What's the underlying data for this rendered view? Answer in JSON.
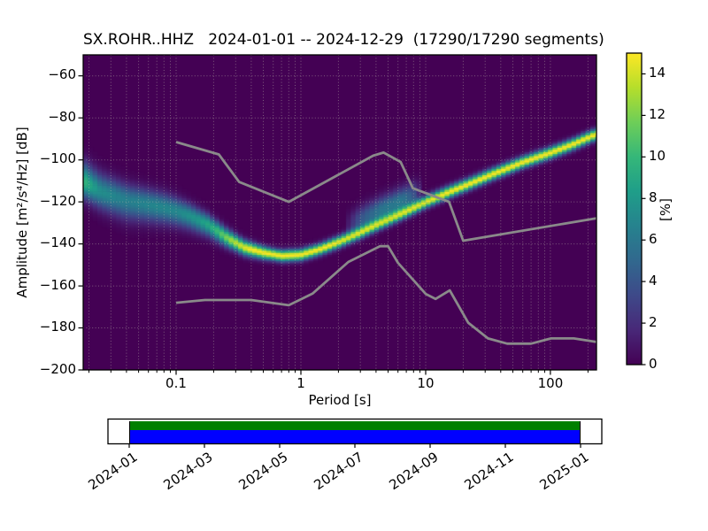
{
  "figure": {
    "title": "SX.ROHR..HHZ   2024-01-01 -- 2024-12-29  (17290/17290 segments)"
  },
  "chart_data": {
    "type": "heatmap",
    "title": "SX.ROHR..HHZ   2024-01-01 -- 2024-12-29  (17290/17290 segments)",
    "xlabel": "Period [s]",
    "ylabel": "Amplitude [m²/s⁴/Hz] [dB]",
    "xscale": "log",
    "xlim": [
      0.018,
      234
    ],
    "ylim": [
      -200,
      -50
    ],
    "grid": true,
    "colormap": "viridis",
    "xticks": {
      "values": [
        0.1,
        1,
        10,
        100
      ],
      "labels": [
        "0.1",
        "1",
        "10",
        "100"
      ]
    },
    "yticks": {
      "values": [
        -200,
        -180,
        -160,
        -140,
        -120,
        -100,
        -80,
        -60
      ],
      "labels": [
        "−200",
        "−180",
        "−160",
        "−140",
        "−120",
        "−100",
        "−80",
        "−60"
      ]
    },
    "colorbar": {
      "label": "[%]",
      "ticks": [
        0,
        2,
        4,
        6,
        8,
        10,
        12,
        14
      ],
      "range": [
        0,
        15
      ]
    },
    "ppsd_mode_line": {
      "description": "mode of PPSD distribution, [period s, amplitude dB]",
      "points": [
        [
          0.018,
          -110
        ],
        [
          0.025,
          -115
        ],
        [
          0.04,
          -119
        ],
        [
          0.06,
          -121
        ],
        [
          0.08,
          -122.5
        ],
        [
          0.1,
          -124
        ],
        [
          0.13,
          -126.5
        ],
        [
          0.18,
          -130.5
        ],
        [
          0.25,
          -136.5
        ],
        [
          0.35,
          -141.5
        ],
        [
          0.5,
          -144
        ],
        [
          0.7,
          -145.5
        ],
        [
          1.0,
          -145
        ],
        [
          1.4,
          -142.5
        ],
        [
          2.0,
          -139
        ],
        [
          3.0,
          -134.5
        ],
        [
          4.0,
          -131
        ],
        [
          5.0,
          -128.5
        ],
        [
          7.0,
          -124.5
        ],
        [
          10.0,
          -120
        ],
        [
          15.0,
          -115.5
        ],
        [
          22.0,
          -111.5
        ],
        [
          35.0,
          -106.5
        ],
        [
          60.0,
          -101
        ],
        [
          100.0,
          -96.5
        ],
        [
          150.0,
          -92.5
        ],
        [
          234,
          -87.5
        ]
      ]
    },
    "spread": {
      "sigma_above_db": [
        [
          0.018,
          6
        ],
        [
          0.04,
          5
        ],
        [
          0.08,
          4.5
        ],
        [
          0.15,
          3.5
        ],
        [
          0.3,
          2.5
        ],
        [
          0.6,
          1.8
        ],
        [
          1.5,
          1.8
        ],
        [
          3,
          2
        ],
        [
          10,
          2
        ],
        [
          234,
          1.8
        ]
      ],
      "sigma_below_db": [
        [
          0.018,
          5
        ],
        [
          0.04,
          6
        ],
        [
          0.08,
          5
        ],
        [
          0.15,
          4
        ],
        [
          0.3,
          2.5
        ],
        [
          0.6,
          1.8
        ],
        [
          2,
          1.8
        ],
        [
          10,
          1.8
        ],
        [
          234,
          1.8
        ]
      ],
      "peak_percent": [
        [
          0.018,
          10
        ],
        [
          0.024,
          7.5
        ],
        [
          0.04,
          6.5
        ],
        [
          0.07,
          7
        ],
        [
          0.1,
          7
        ],
        [
          0.15,
          8
        ],
        [
          0.2,
          9.5
        ],
        [
          0.28,
          13
        ],
        [
          0.4,
          15
        ],
        [
          1.8,
          15
        ],
        [
          3,
          13.5
        ],
        [
          5,
          12.5
        ],
        [
          7,
          13
        ],
        [
          10,
          14.5
        ],
        [
          15,
          15
        ],
        [
          234,
          15
        ]
      ],
      "secondary_fan": {
        "amp_percent": [
          [
            0.018,
            0
          ],
          [
            2.2,
            0
          ],
          [
            3,
            4
          ],
          [
            4.5,
            6
          ],
          [
            6.5,
            6
          ],
          [
            8,
            4
          ],
          [
            9.5,
            0
          ],
          [
            234,
            0
          ]
        ],
        "offset_db": 6.5,
        "sigma_db": 4
      },
      "period_step_octaves": 0.125,
      "db_bin_width": 1
    },
    "noise_models": {
      "color": "#8a8a8a",
      "nhnm": [
        [
          0.1,
          -91.5
        ],
        [
          0.22,
          -97.4
        ],
        [
          0.32,
          -110.5
        ],
        [
          0.8,
          -120.0
        ],
        [
          3.8,
          -98.0
        ],
        [
          4.6,
          -96.5
        ],
        [
          6.3,
          -101.0
        ],
        [
          7.9,
          -113.5
        ],
        [
          15.4,
          -120.0
        ],
        [
          20.0,
          -138.5
        ],
        [
          234,
          -127.8
        ]
      ],
      "nlnm": [
        [
          0.1,
          -168.0
        ],
        [
          0.17,
          -166.7
        ],
        [
          0.4,
          -166.7
        ],
        [
          0.8,
          -169.2
        ],
        [
          1.24,
          -163.7
        ],
        [
          2.4,
          -148.6
        ],
        [
          4.3,
          -141.1
        ],
        [
          5.0,
          -141.1
        ],
        [
          6.0,
          -149.0
        ],
        [
          10.0,
          -163.8
        ],
        [
          12.0,
          -166.2
        ],
        [
          15.6,
          -162.1
        ],
        [
          21.9,
          -177.5
        ],
        [
          31.6,
          -185.0
        ],
        [
          45.0,
          -187.5
        ],
        [
          70.0,
          -187.5
        ],
        [
          101.0,
          -185.0
        ],
        [
          154.0,
          -185.0
        ],
        [
          234,
          -186.7
        ]
      ]
    },
    "timeline": {
      "tick_labels": [
        "2024-01",
        "2024-03",
        "2024-05",
        "2024-07",
        "2024-09",
        "2024-11",
        "2025-01"
      ],
      "bar_colors": {
        "top": "#008000",
        "bottom": "#0000ff"
      }
    }
  }
}
